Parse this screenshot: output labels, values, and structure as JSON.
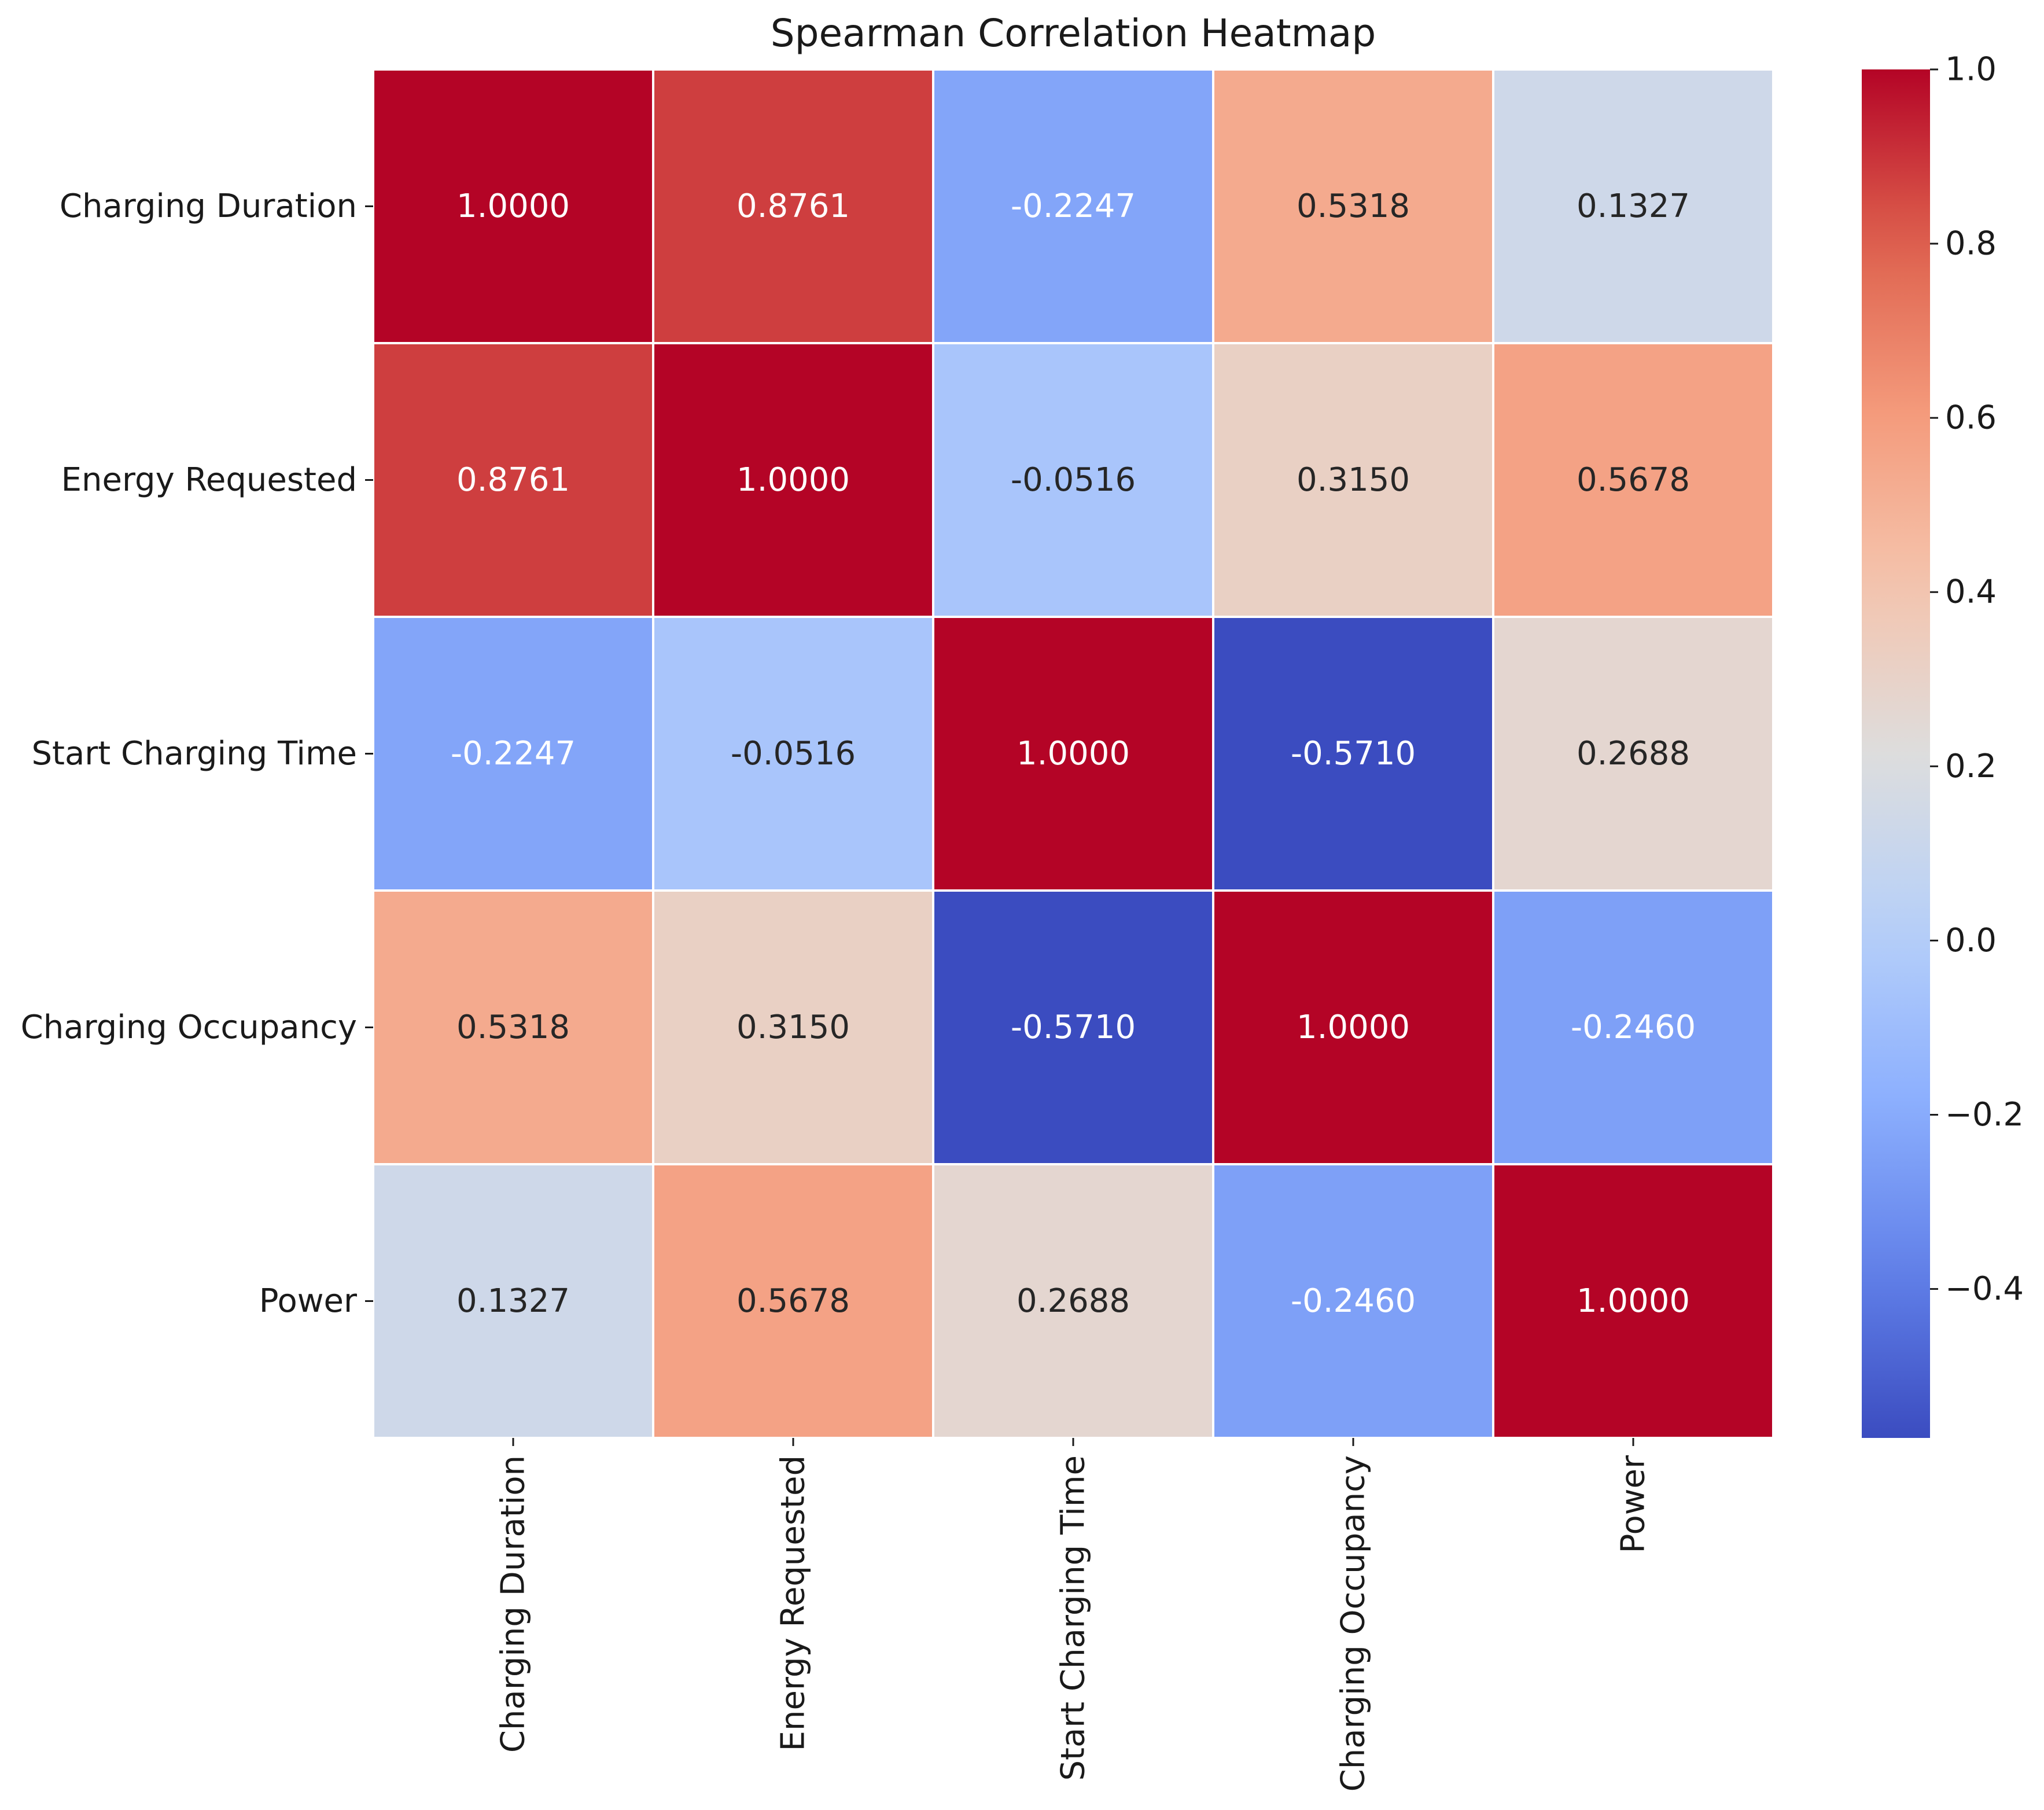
{
  "chart_data": {
    "type": "heatmap",
    "title": "Spearman Correlation Heatmap",
    "row_labels": [
      "Charging Duration",
      "Energy Requested",
      "Start Charging Time",
      "Charging Occupancy",
      "Power"
    ],
    "col_labels": [
      "Charging Duration",
      "Energy Requested",
      "Start Charging Time",
      "Charging Occupancy",
      "Power"
    ],
    "values": [
      [
        1.0,
        0.8761,
        -0.2247,
        0.5318,
        0.1327
      ],
      [
        0.8761,
        1.0,
        -0.0516,
        0.315,
        0.5678
      ],
      [
        -0.2247,
        -0.0516,
        1.0,
        -0.571,
        0.2688
      ],
      [
        0.5318,
        0.315,
        -0.571,
        1.0,
        -0.246
      ],
      [
        0.1327,
        0.5678,
        0.2688,
        -0.246,
        1.0
      ]
    ],
    "cell_labels": [
      [
        "1.0000",
        "0.8761",
        "-0.2247",
        "0.5318",
        "0.1327"
      ],
      [
        "0.8761",
        "1.0000",
        "-0.0516",
        "0.3150",
        "0.5678"
      ],
      [
        "-0.2247",
        "-0.0516",
        "1.0000",
        "-0.5710",
        "0.2688"
      ],
      [
        "0.5318",
        "0.3150",
        "-0.5710",
        "1.0000",
        "-0.2460"
      ],
      [
        "0.1327",
        "0.5678",
        "0.2688",
        "-0.2460",
        "1.0000"
      ]
    ],
    "colormap": "coolwarm",
    "vmin": -0.571,
    "vmax": 1.0,
    "colorbar": {
      "ticks": [
        1.0,
        0.8,
        0.6,
        0.4,
        0.2,
        0.0,
        -0.2,
        -0.4
      ],
      "tick_labels": [
        "1.0",
        "0.8",
        "0.6",
        "0.4",
        "0.2",
        "0.0",
        "−0.2",
        "−0.4"
      ],
      "placement": "right"
    },
    "xlabel": "",
    "ylabel": "",
    "grid": true
  }
}
